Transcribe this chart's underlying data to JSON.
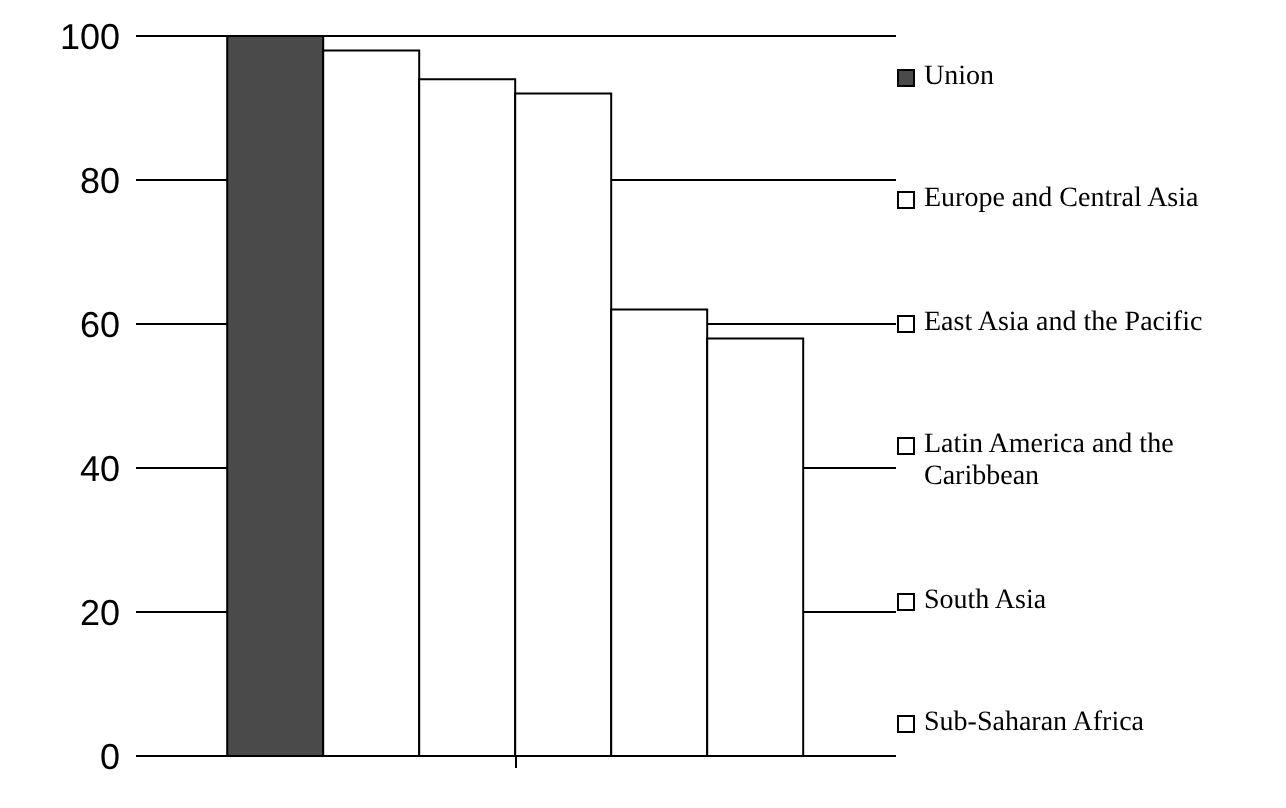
{
  "chart_data": {
    "type": "bar",
    "categories": [
      null
    ],
    "series": [
      {
        "name": "Union",
        "color": "#4a4a4a",
        "values": [
          100
        ]
      },
      {
        "name": "Europe and Central Asia",
        "color": "#ffffff",
        "values": [
          98
        ]
      },
      {
        "name": "East Asia and the Pacific",
        "color": "#ffffff",
        "values": [
          94
        ]
      },
      {
        "name": "Latin America and the Caribbean",
        "color": "#ffffff",
        "values": [
          92
        ]
      },
      {
        "name": "South Asia",
        "color": "#ffffff",
        "values": [
          62
        ]
      },
      {
        "name": "Sub-Saharan Africa",
        "color": "#ffffff",
        "values": [
          58
        ]
      }
    ],
    "ylim": [
      0,
      100
    ],
    "yticks": [
      0,
      20,
      40,
      60,
      80,
      100
    ],
    "grid": "y",
    "legend": "right"
  }
}
